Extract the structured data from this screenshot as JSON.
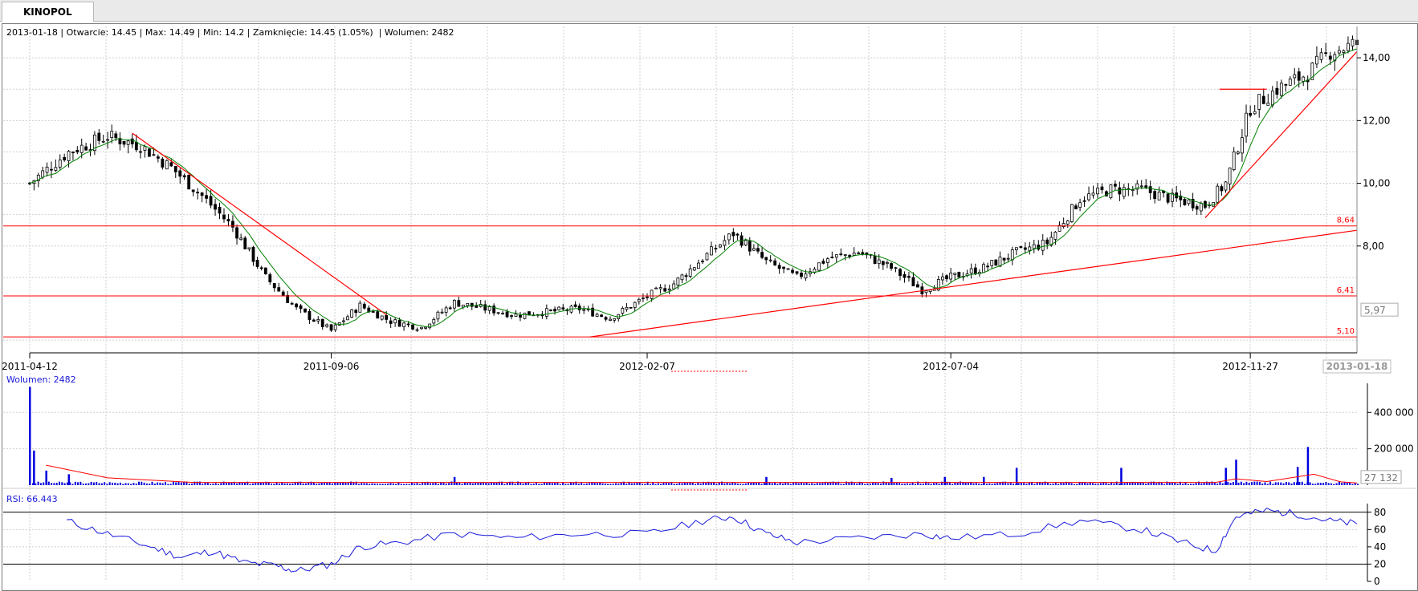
{
  "tab": {
    "label": "KINOPOL"
  },
  "header": {
    "info": "2013-01-18 | Otwarcie: 14.45 | Max: 14.49 | Min: 14.2 | Zamknięcie: 14.45 (1.05%)  | Wolumen: 2482"
  },
  "price_panel": {
    "y_ticks": [
      "14,00",
      "12,00",
      "10,00",
      "8,00"
    ],
    "x_ticks": [
      "2011-04-12",
      "2011-09-06",
      "2012-02-07",
      "2012-07-04",
      "2012-11-27"
    ],
    "current_date": "2013-01-18",
    "current_marker": "5,97",
    "levels": [
      {
        "label": "8,64",
        "value": 8.64
      },
      {
        "label": "6,41",
        "value": 6.41
      },
      {
        "label": "5,10",
        "value": 5.1
      }
    ]
  },
  "volume_panel": {
    "label": "Wolumen: 2482",
    "y_ticks": [
      "400 000",
      "200 000"
    ],
    "current_marker": "27 132"
  },
  "rsi_panel": {
    "label": "RSI: 66.443",
    "y_ticks": [
      "80",
      "60",
      "40",
      "20",
      "0"
    ],
    "levels": [
      80,
      20
    ]
  },
  "colors": {
    "candle": "#000000",
    "ma": "#008000",
    "trend": "#ff0000",
    "volume": "#0000dd",
    "rsi": "#1a1adc",
    "grid": "#cfcfcf"
  },
  "chart_data": [
    {
      "type": "candlestick",
      "title": "",
      "x_ticks": [
        "2011-04-12",
        "2011-09-06",
        "2012-02-07",
        "2012-07-04",
        "2012-11-27"
      ],
      "ylim": [
        4.9,
        15.0
      ],
      "close_path": [
        [
          "2011-04-12",
          10.0
        ],
        [
          "2011-05-01",
          11.0
        ],
        [
          "2011-05-20",
          11.5
        ],
        [
          "2011-06-05",
          11.2
        ],
        [
          "2011-06-20",
          10.5
        ],
        [
          "2011-07-05",
          9.6
        ],
        [
          "2011-07-20",
          8.6
        ],
        [
          "2011-08-05",
          7.0
        ],
        [
          "2011-08-20",
          6.0
        ],
        [
          "2011-09-06",
          5.3
        ],
        [
          "2011-09-20",
          6.1
        ],
        [
          "2011-10-05",
          5.6
        ],
        [
          "2011-10-20",
          5.4
        ],
        [
          "2011-11-05",
          6.2
        ],
        [
          "2011-11-20",
          6.0
        ],
        [
          "2011-12-05",
          5.8
        ],
        [
          "2011-12-20",
          5.9
        ],
        [
          "2012-01-05",
          6.0
        ],
        [
          "2012-01-20",
          5.7
        ],
        [
          "2012-02-07",
          6.4
        ],
        [
          "2012-02-20",
          6.8
        ],
        [
          "2012-03-05",
          7.6
        ],
        [
          "2012-03-20",
          8.4
        ],
        [
          "2012-04-05",
          7.5
        ],
        [
          "2012-04-20",
          7.0
        ],
        [
          "2012-05-05",
          7.6
        ],
        [
          "2012-05-20",
          7.8
        ],
        [
          "2012-06-05",
          7.3
        ],
        [
          "2012-06-20",
          6.6
        ],
        [
          "2012-07-04",
          7.0
        ],
        [
          "2012-07-20",
          7.3
        ],
        [
          "2012-08-05",
          7.8
        ],
        [
          "2012-08-20",
          8.1
        ],
        [
          "2012-09-05",
          9.5
        ],
        [
          "2012-09-20",
          9.8
        ],
        [
          "2012-10-05",
          9.8
        ],
        [
          "2012-10-20",
          9.5
        ],
        [
          "2012-11-05",
          9.3
        ],
        [
          "2012-11-15",
          10.0
        ],
        [
          "2012-11-27",
          12.4
        ],
        [
          "2012-12-10",
          13.0
        ],
        [
          "2012-12-25",
          13.5
        ],
        [
          "2013-01-05",
          14.2
        ],
        [
          "2013-01-18",
          14.45
        ]
      ],
      "last": {
        "date": "2013-01-18",
        "open": 14.45,
        "high": 14.49,
        "low": 14.2,
        "close": 14.45,
        "change_pct": 1.05
      },
      "horizontal_levels": [
        8.64,
        6.41,
        5.1
      ]
    },
    {
      "type": "bar",
      "title": "Wolumen",
      "ylim": [
        0,
        560000
      ],
      "last_value": 2482,
      "spikes": [
        [
          "2011-04-12",
          540000
        ],
        [
          "2011-04-14",
          190000
        ],
        [
          "2011-04-20",
          80000
        ],
        [
          "2011-05-01",
          60000
        ],
        [
          "2011-11-05",
          45000
        ],
        [
          "2012-04-05",
          45000
        ],
        [
          "2012-06-05",
          40000
        ],
        [
          "2012-07-01",
          45000
        ],
        [
          "2012-07-20",
          45000
        ],
        [
          "2012-08-05",
          95000
        ],
        [
          "2012-09-25",
          95000
        ],
        [
          "2012-11-15",
          95000
        ],
        [
          "2012-11-20",
          140000
        ],
        [
          "2012-12-25",
          210000
        ],
        [
          "2012-12-20",
          100000
        ]
      ]
    },
    {
      "type": "line",
      "title": "RSI",
      "ylim": [
        0,
        90
      ],
      "last_value": 66.443,
      "points": [
        [
          "2011-04-30",
          70
        ],
        [
          "2011-05-20",
          55
        ],
        [
          "2011-06-10",
          40
        ],
        [
          "2011-06-25",
          28
        ],
        [
          "2011-07-10",
          35
        ],
        [
          "2011-07-25",
          22
        ],
        [
          "2011-08-10",
          18
        ],
        [
          "2011-08-20",
          12
        ],
        [
          "2011-09-06",
          20
        ],
        [
          "2011-09-20",
          40
        ],
        [
          "2011-10-10",
          45
        ],
        [
          "2011-11-05",
          55
        ],
        [
          "2011-12-05",
          50
        ],
        [
          "2012-01-05",
          55
        ],
        [
          "2012-02-07",
          55
        ],
        [
          "2012-03-05",
          70
        ],
        [
          "2012-03-20",
          75
        ],
        [
          "2012-04-05",
          55
        ],
        [
          "2012-04-20",
          45
        ],
        [
          "2012-05-20",
          50
        ],
        [
          "2012-06-20",
          55
        ],
        [
          "2012-07-04",
          50
        ],
        [
          "2012-08-05",
          55
        ],
        [
          "2012-09-05",
          70
        ],
        [
          "2012-10-05",
          60
        ],
        [
          "2012-10-25",
          45
        ],
        [
          "2012-11-10",
          35
        ],
        [
          "2012-11-20",
          75
        ],
        [
          "2012-12-05",
          82
        ],
        [
          "2012-12-20",
          78
        ],
        [
          "2013-01-05",
          70
        ],
        [
          "2013-01-18",
          66.443
        ]
      ],
      "levels": [
        80,
        20
      ]
    }
  ]
}
